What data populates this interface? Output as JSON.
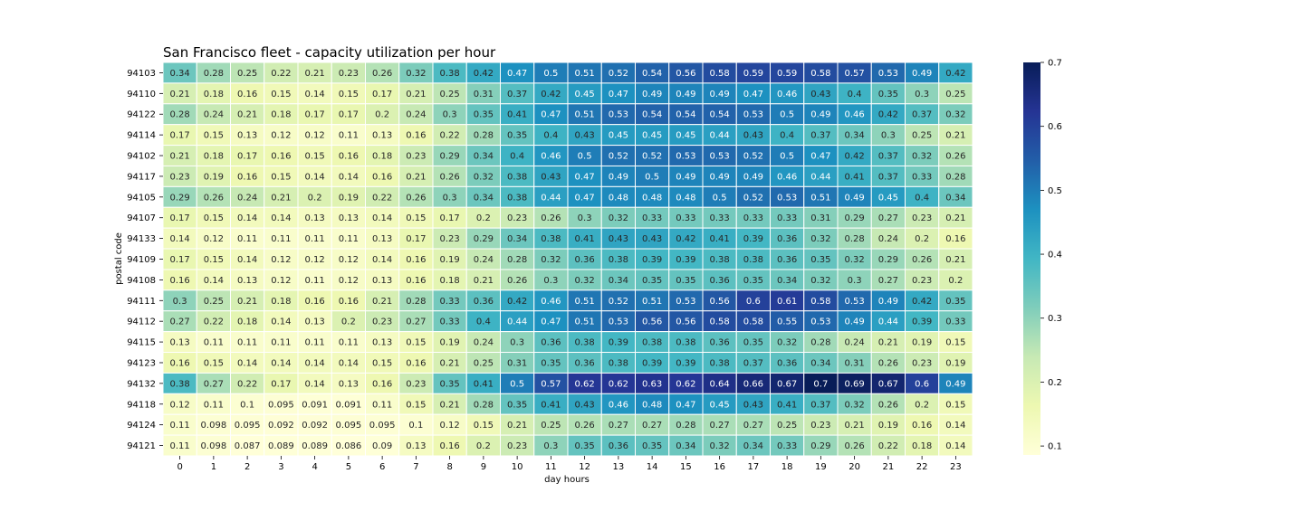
{
  "chart_data": {
    "type": "heatmap",
    "title": "San Francisco fleet -  capacity utilization per hour",
    "xlabel": "day hours",
    "ylabel": "postal code",
    "x": [
      "0",
      "1",
      "2",
      "3",
      "4",
      "5",
      "6",
      "7",
      "8",
      "9",
      "10",
      "11",
      "12",
      "13",
      "14",
      "15",
      "16",
      "17",
      "18",
      "19",
      "20",
      "21",
      "22",
      "23"
    ],
    "y": [
      "94103",
      "94110",
      "94122",
      "94114",
      "94102",
      "94117",
      "94105",
      "94107",
      "94133",
      "94109",
      "94108",
      "94111",
      "94112",
      "94115",
      "94123",
      "94132",
      "94118",
      "94124",
      "94121"
    ],
    "values": [
      [
        0.34,
        0.28,
        0.25,
        0.22,
        0.21,
        0.23,
        0.26,
        0.32,
        0.38,
        0.42,
        0.47,
        0.5,
        0.51,
        0.52,
        0.54,
        0.56,
        0.58,
        0.59,
        0.59,
        0.58,
        0.57,
        0.53,
        0.49,
        0.42
      ],
      [
        0.21,
        0.18,
        0.16,
        0.15,
        0.14,
        0.15,
        0.17,
        0.21,
        0.25,
        0.31,
        0.37,
        0.42,
        0.45,
        0.47,
        0.49,
        0.49,
        0.49,
        0.47,
        0.46,
        0.43,
        0.4,
        0.35,
        0.3,
        0.25
      ],
      [
        0.28,
        0.24,
        0.21,
        0.18,
        0.17,
        0.17,
        0.2,
        0.24,
        0.3,
        0.35,
        0.41,
        0.47,
        0.51,
        0.53,
        0.54,
        0.54,
        0.54,
        0.53,
        0.5,
        0.49,
        0.46,
        0.42,
        0.37,
        0.32
      ],
      [
        0.17,
        0.15,
        0.13,
        0.12,
        0.12,
        0.11,
        0.13,
        0.16,
        0.22,
        0.28,
        0.35,
        0.4,
        0.43,
        0.45,
        0.45,
        0.45,
        0.44,
        0.43,
        0.4,
        0.37,
        0.34,
        0.3,
        0.25,
        0.21
      ],
      [
        0.21,
        0.18,
        0.17,
        0.16,
        0.15,
        0.16,
        0.18,
        0.23,
        0.29,
        0.34,
        0.4,
        0.46,
        0.5,
        0.52,
        0.52,
        0.53,
        0.53,
        0.52,
        0.5,
        0.47,
        0.42,
        0.37,
        0.32,
        0.26
      ],
      [
        0.23,
        0.19,
        0.16,
        0.15,
        0.14,
        0.14,
        0.16,
        0.21,
        0.26,
        0.32,
        0.38,
        0.43,
        0.47,
        0.49,
        0.5,
        0.49,
        0.49,
        0.49,
        0.46,
        0.44,
        0.41,
        0.37,
        0.33,
        0.28
      ],
      [
        0.29,
        0.26,
        0.24,
        0.21,
        0.2,
        0.19,
        0.22,
        0.26,
        0.3,
        0.34,
        0.38,
        0.44,
        0.47,
        0.48,
        0.48,
        0.48,
        0.5,
        0.52,
        0.53,
        0.51,
        0.49,
        0.45,
        0.4,
        0.34
      ],
      [
        0.17,
        0.15,
        0.14,
        0.14,
        0.13,
        0.13,
        0.14,
        0.15,
        0.17,
        0.2,
        0.23,
        0.26,
        0.3,
        0.32,
        0.33,
        0.33,
        0.33,
        0.33,
        0.33,
        0.31,
        0.29,
        0.27,
        0.23,
        0.21
      ],
      [
        0.14,
        0.12,
        0.11,
        0.11,
        0.11,
        0.11,
        0.13,
        0.17,
        0.23,
        0.29,
        0.34,
        0.38,
        0.41,
        0.43,
        0.43,
        0.42,
        0.41,
        0.39,
        0.36,
        0.32,
        0.28,
        0.24,
        0.2,
        0.16
      ],
      [
        0.17,
        0.15,
        0.14,
        0.12,
        0.12,
        0.12,
        0.14,
        0.16,
        0.19,
        0.24,
        0.28,
        0.32,
        0.36,
        0.38,
        0.39,
        0.39,
        0.38,
        0.38,
        0.36,
        0.35,
        0.32,
        0.29,
        0.26,
        0.21
      ],
      [
        0.16,
        0.14,
        0.13,
        0.12,
        0.11,
        0.12,
        0.13,
        0.16,
        0.18,
        0.21,
        0.26,
        0.3,
        0.32,
        0.34,
        0.35,
        0.35,
        0.36,
        0.35,
        0.34,
        0.32,
        0.3,
        0.27,
        0.23,
        0.2
      ],
      [
        0.3,
        0.25,
        0.21,
        0.18,
        0.16,
        0.16,
        0.21,
        0.28,
        0.33,
        0.36,
        0.42,
        0.46,
        0.51,
        0.52,
        0.51,
        0.53,
        0.56,
        0.6,
        0.61,
        0.58,
        0.53,
        0.49,
        0.42,
        0.35
      ],
      [
        0.27,
        0.22,
        0.18,
        0.14,
        0.13,
        0.2,
        0.23,
        0.27,
        0.33,
        0.4,
        0.44,
        0.47,
        0.51,
        0.53,
        0.56,
        0.56,
        0.58,
        0.58,
        0.55,
        0.53,
        0.49,
        0.44,
        0.39,
        0.33
      ],
      [
        0.13,
        0.11,
        0.11,
        0.11,
        0.11,
        0.11,
        0.13,
        0.15,
        0.19,
        0.24,
        0.3,
        0.36,
        0.38,
        0.39,
        0.38,
        0.38,
        0.36,
        0.35,
        0.32,
        0.28,
        0.24,
        0.21,
        0.19,
        0.15
      ],
      [
        0.16,
        0.15,
        0.14,
        0.14,
        0.14,
        0.14,
        0.15,
        0.16,
        0.21,
        0.25,
        0.31,
        0.35,
        0.36,
        0.38,
        0.39,
        0.39,
        0.38,
        0.37,
        0.36,
        0.34,
        0.31,
        0.26,
        0.23,
        0.19
      ],
      [
        0.38,
        0.27,
        0.22,
        0.17,
        0.14,
        0.13,
        0.16,
        0.23,
        0.35,
        0.41,
        0.5,
        0.57,
        0.62,
        0.62,
        0.63,
        0.62,
        0.64,
        0.66,
        0.67,
        0.7,
        0.69,
        0.67,
        0.6,
        0.49
      ],
      [
        0.12,
        0.11,
        0.1,
        0.095,
        0.091,
        0.091,
        0.11,
        0.15,
        0.21,
        0.28,
        0.35,
        0.41,
        0.43,
        0.46,
        0.48,
        0.47,
        0.45,
        0.43,
        0.41,
        0.37,
        0.32,
        0.26,
        0.2,
        0.15
      ],
      [
        0.11,
        0.098,
        0.095,
        0.092,
        0.092,
        0.095,
        0.095,
        0.1,
        0.12,
        0.15,
        0.21,
        0.25,
        0.26,
        0.27,
        0.27,
        0.28,
        0.27,
        0.27,
        0.25,
        0.23,
        0.21,
        0.19,
        0.16,
        0.14
      ],
      [
        0.11,
        0.098,
        0.087,
        0.089,
        0.089,
        0.086,
        0.09,
        0.13,
        0.16,
        0.2,
        0.23,
        0.3,
        0.35,
        0.36,
        0.35,
        0.34,
        0.32,
        0.34,
        0.33,
        0.29,
        0.26,
        0.22,
        0.18,
        0.14
      ]
    ],
    "colorbar": {
      "ticks": [
        "0.1",
        "0.2",
        "0.3",
        "0.4",
        "0.5",
        "0.6",
        "0.7"
      ],
      "range": [
        0.086,
        0.7
      ]
    },
    "colormap": "YlGnBu",
    "grid": false
  }
}
